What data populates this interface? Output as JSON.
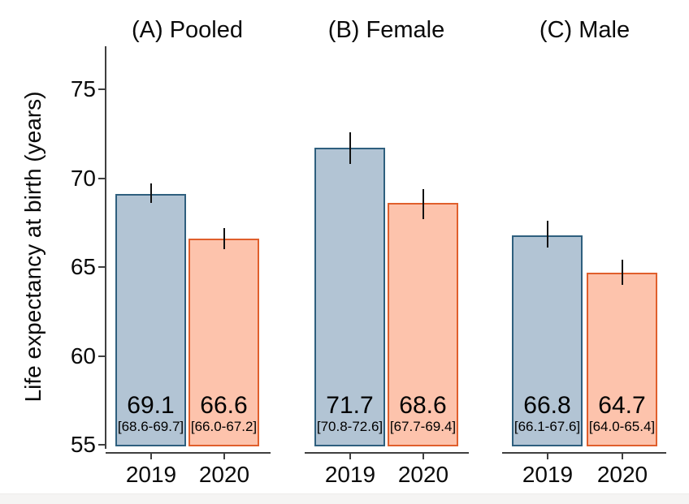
{
  "chart_data": {
    "type": "bar",
    "title": "",
    "ylabel": "Life expectancy at birth (years)",
    "xlabel": "",
    "ylim": [
      55,
      77.5
    ],
    "yticks": [
      75,
      70,
      65,
      60,
      55
    ],
    "categories": [
      "2019",
      "2020"
    ],
    "grid": false,
    "legend_position": "none",
    "error_bars": true,
    "panels": [
      {
        "label": "(A) Pooled",
        "bars": [
          {
            "category": "2019",
            "value": 69.1,
            "ci_low": 68.6,
            "ci_high": 69.7,
            "value_label": "69.1",
            "ci_label": "[68.6-69.7]"
          },
          {
            "category": "2020",
            "value": 66.6,
            "ci_low": 66.0,
            "ci_high": 67.2,
            "value_label": "66.6",
            "ci_label": "[66.0-67.2]"
          }
        ]
      },
      {
        "label": "(B) Female",
        "bars": [
          {
            "category": "2019",
            "value": 71.7,
            "ci_low": 70.8,
            "ci_high": 72.6,
            "value_label": "71.7",
            "ci_label": "[70.8-72.6]"
          },
          {
            "category": "2020",
            "value": 68.6,
            "ci_low": 67.7,
            "ci_high": 69.4,
            "value_label": "68.6",
            "ci_label": "[67.7-69.4]"
          }
        ]
      },
      {
        "label": "(C) Male",
        "bars": [
          {
            "category": "2019",
            "value": 66.8,
            "ci_low": 66.1,
            "ci_high": 67.6,
            "value_label": "66.8",
            "ci_label": "[66.1-67.6]"
          },
          {
            "category": "2020",
            "value": 64.7,
            "ci_low": 64.0,
            "ci_high": 65.4,
            "value_label": "64.7",
            "ci_label": "[64.0-65.4]"
          }
        ]
      }
    ],
    "colors": {
      "bar_2019_fill": "#b2c4d4",
      "bar_2019_border": "#2e5f7e",
      "bar_2020_fill": "#fdc3ac",
      "bar_2020_border": "#e05f2c",
      "error_bar": "#111111",
      "axis": "#3f3f3f",
      "text": "#000000",
      "background": "#ffffff"
    }
  }
}
